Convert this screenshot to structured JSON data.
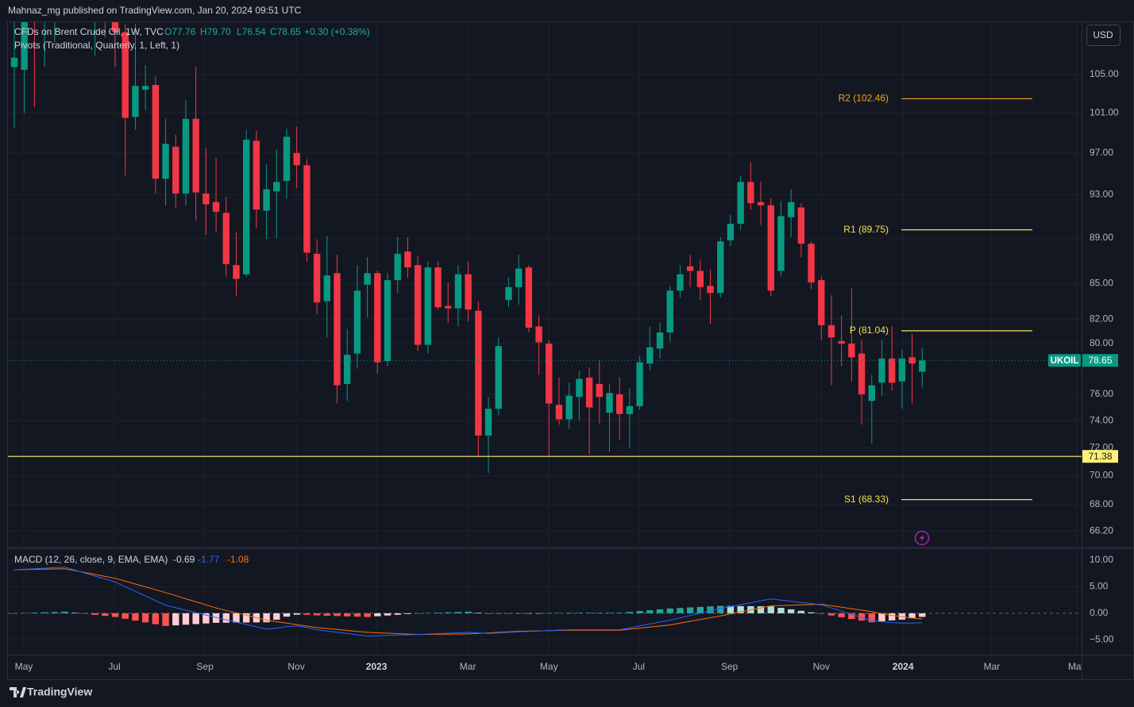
{
  "header": {
    "publisher": "Mahnaz_mg published on TradingView.com, Jan 20, 2024 09:51 UTC"
  },
  "currency": "USD",
  "footer": "TradingView",
  "chart_data": [
    {
      "type": "candlestick",
      "legend": {
        "symbol": "CFDs on Brent Crude Oil, 1W, TVC",
        "open": "O77.76",
        "high": "H79.70",
        "low": "L76.54",
        "close": "C78.65",
        "change": "+0.30 (+0.38%)"
      },
      "indicator": "Pivots (Traditional, Quarterly, 1, Left, 1)",
      "open": [
        105.8,
        105.5,
        112.5,
        111,
        112.6,
        119.5,
        119.6,
        122,
        113.1,
        113,
        113,
        109.6,
        100.6,
        103.4,
        103.9,
        94.5,
        97.6,
        93.1,
        100.4,
        93.1,
        92.3,
        91.3,
        86.6,
        85.8,
        98.2,
        91.5,
        93.3,
        94.3,
        97,
        95.8,
        87.6,
        83.5,
        85.9,
        76.8,
        79.2,
        84.9,
        85.9,
        78.6,
        85.3,
        87.8,
        86.6,
        79.9,
        86.4,
        83.1,
        82.9,
        85.8,
        82.7,
        72.9,
        74.9,
        83.6,
        84.7,
        86.4,
        81.4,
        80,
        75.2,
        74.1,
        75.8,
        77.3,
        76.8,
        74.6,
        76,
        74.5,
        75.1,
        78.4,
        79.6,
        80.9,
        84.4,
        86.5,
        86.1,
        84.8,
        84.2,
        88.8,
        90.3,
        94.2,
        92.3,
        92,
        86.1,
        90.9,
        91.8,
        88.5,
        85.3,
        81.5,
        80.2,
        80,
        79.2,
        75.5,
        76.9,
        78.8,
        77,
        78.9,
        77.76
      ],
      "high": [
        110.8,
        114,
        114,
        113,
        119.7,
        124.4,
        124,
        125,
        115.4,
        117,
        115,
        110.5,
        110.5,
        106,
        104.8,
        100.4,
        98.8,
        102.3,
        105.8,
        97.5,
        96.5,
        92.8,
        89.5,
        99.3,
        99.2,
        95.9,
        97.3,
        99.4,
        99.6,
        96.4,
        88.9,
        89.2,
        87.5,
        81.2,
        86.6,
        87.3,
        86.1,
        85.9,
        89.1,
        89.1,
        87.4,
        86.9,
        86.9,
        85.1,
        86.6,
        86.9,
        83.5,
        75.8,
        80.5,
        85.5,
        87.5,
        86.6,
        82.3,
        80.3,
        77.3,
        76.9,
        77.8,
        78.1,
        78.7,
        76.8,
        77.3,
        76.5,
        79,
        81.4,
        81.7,
        84.8,
        86.6,
        87.5,
        87.1,
        86.2,
        89.1,
        91.1,
        94.8,
        96.1,
        94.2,
        92.7,
        92.4,
        93.5,
        92.2,
        88.7,
        85.6,
        84,
        82.3,
        84.6,
        80.3,
        77.5,
        80.3,
        81.4,
        79.5,
        80.8,
        79.7
      ],
      "low": [
        99.5,
        101,
        101.6,
        105.8,
        108.5,
        115.8,
        118.2,
        111.6,
        107,
        109,
        105.8,
        94.8,
        99.3,
        101.3,
        93.1,
        92,
        91.8,
        92,
        90.6,
        89.3,
        89.5,
        85.6,
        83.9,
        85.6,
        89.9,
        88.9,
        89,
        92.6,
        93.6,
        86.9,
        82.4,
        80.5,
        75.3,
        75.5,
        78,
        82.1,
        77.6,
        78.2,
        84.2,
        85.5,
        79.4,
        79.2,
        82.8,
        81.7,
        81.4,
        81.8,
        71.4,
        70.2,
        74.4,
        83,
        83.2,
        80.9,
        77.5,
        71.4,
        73.7,
        73.4,
        74,
        71.5,
        73.8,
        71.7,
        72.6,
        72,
        74.8,
        77.9,
        78.8,
        80.1,
        83.8,
        84.7,
        83.6,
        81.6,
        83.8,
        88.3,
        89.7,
        91.6,
        90.2,
        83.9,
        85.6,
        89.1,
        87.3,
        84.5,
        80.3,
        76.7,
        78.2,
        77,
        73.7,
        72.3,
        75.9,
        76.3,
        74.9,
        75.3,
        76.54
      ],
      "close": [
        106.8,
        112.4,
        111.5,
        112.6,
        119.4,
        119.7,
        122,
        113.1,
        113.1,
        111.6,
        109.6,
        100.5,
        103.8,
        103.8,
        94.5,
        97.9,
        93.1,
        100.4,
        93.2,
        92.1,
        91.4,
        86.7,
        85.4,
        98.3,
        91.6,
        93.5,
        94.2,
        98.6,
        95.8,
        87.7,
        83.4,
        85.7,
        76.7,
        79.1,
        84.4,
        85.9,
        78.5,
        85.3,
        87.6,
        86.4,
        79.9,
        86.4,
        83,
        82.9,
        85.8,
        82.8,
        72.9,
        74.9,
        79.8,
        84.7,
        86.3,
        81.3,
        80.1,
        75.3,
        74.1,
        75.9,
        77.2,
        75,
        75.8,
        76.1,
        74.5,
        75.1,
        78.5,
        79.7,
        80.9,
        84.4,
        85.8,
        86.1,
        84.7,
        84.2,
        88.7,
        90.3,
        94.2,
        92.2,
        92,
        84.4,
        91,
        92.3,
        88.5,
        85.1,
        81.5,
        80.5,
        80,
        78.9,
        76,
        76.7,
        78.8,
        76.9,
        78.8,
        78.4,
        78.65
      ],
      "up_color": "#089981",
      "down_color": "#f23645",
      "log_scale": true,
      "grid": true,
      "ylim": [
        65.1,
        110.7
      ],
      "yticks": [
        {
          "value": 105,
          "label": "105.00"
        },
        {
          "value": 101,
          "label": "101.00"
        },
        {
          "value": 97,
          "label": "97.00"
        },
        {
          "value": 93,
          "label": "93.00"
        },
        {
          "value": 89,
          "label": "89.00"
        },
        {
          "value": 85,
          "label": "85.00"
        },
        {
          "value": 82,
          "label": "82.00"
        },
        {
          "value": 80,
          "label": "80.00"
        },
        {
          "value": 76,
          "label": "76.00"
        },
        {
          "value": 74,
          "label": "74.00"
        },
        {
          "value": 72,
          "label": "72.00"
        },
        {
          "value": 70,
          "label": "70.00"
        },
        {
          "value": 68,
          "label": "68.00"
        },
        {
          "value": 66.2,
          "label": "66.20"
        }
      ],
      "xlim": [
        -0.63,
        105.8
      ],
      "xticks": [
        {
          "value": 0.94,
          "label": "May"
        },
        {
          "value": 9.92,
          "label": "Jul"
        },
        {
          "value": 18.9,
          "label": "Sep"
        },
        {
          "value": 27.95,
          "label": "Nov"
        },
        {
          "value": 35.9,
          "label": "2023"
        },
        {
          "value": 44.96,
          "label": "Mar"
        },
        {
          "value": 53.0,
          "label": "May"
        },
        {
          "value": 61.9,
          "label": "Jul"
        },
        {
          "value": 70.9,
          "label": "Sep"
        },
        {
          "value": 80.0,
          "label": "Nov"
        },
        {
          "value": 88.1,
          "label": "2024"
        },
        {
          "value": 96.9,
          "label": "Mar"
        },
        {
          "value": 105.35,
          "label": "May"
        }
      ],
      "pivots": [
        {
          "label": "R2 (102.46)",
          "value": 102.46,
          "color": "#f7a21b"
        },
        {
          "label": "R1 (89.75)",
          "value": 89.75,
          "color": "#f5e04c"
        },
        {
          "label": "P (81.04)",
          "value": 81.04,
          "color": "#f5e04c"
        },
        {
          "label": "S1 (68.33)",
          "value": 68.33,
          "color": "#f5e04c"
        }
      ],
      "horizontal_line": {
        "value": 71.38,
        "color": "#fff176"
      },
      "last_price": {
        "symbol": "UKOIL"
      }
    },
    {
      "type": "macd",
      "title": "MACD (12, 26, close, 9, EMA, EMA)",
      "ylim": [
        -7.8,
        12.4
      ],
      "yticks": [
        {
          "value": 10,
          "label": "10.00"
        },
        {
          "value": 5,
          "label": "5.00"
        },
        {
          "value": 0,
          "label": "0.00"
        },
        {
          "value": -5,
          "label": "−5.00"
        }
      ],
      "histogram": {
        "colors": {
          "up_rising": "#26a69a",
          "up_falling": "#b2dfdb",
          "down_falling": "#ff5252",
          "down_rising": "#ffcdd2"
        },
        "values": [
          0,
          0.06,
          0.12,
          0.18,
          0.24,
          0.3,
          0.1,
          -0.1,
          -0.3,
          -0.5,
          -0.7,
          -1.04,
          -1.38,
          -1.72,
          -2.06,
          -2.4,
          -2.28,
          -2.16,
          -2.04,
          -1.92,
          -1.8,
          -1.78,
          -1.76,
          -1.74,
          -1.72,
          -1.7,
          -1.22,
          -0.64,
          -0.26,
          -0.28,
          -0.4,
          -0.46,
          -0.52,
          -0.58,
          -0.64,
          -0.7,
          -0.56,
          -0.42,
          -0.28,
          -0.14,
          0,
          0.06,
          0.12,
          0.18,
          0.24,
          0.3,
          0.1,
          -0.1,
          -0.1,
          -0.1,
          -0.1,
          -0.06,
          -0.02,
          0.02,
          0.06,
          0.1,
          0.1,
          0.1,
          0.1,
          0.1,
          0.1,
          0.26,
          0.42,
          0.58,
          0.74,
          0.9,
          1.0,
          1.1,
          1.2,
          1.3,
          1.4,
          1.38,
          1.36,
          1.34,
          1.32,
          1.3,
          1.02,
          0.74,
          0.46,
          0.18,
          -0.1,
          -0.42,
          -0.74,
          -1.06,
          -1.38,
          -1.7,
          -1.5,
          -1.35,
          -1.2,
          -0.95,
          -0.69
        ]
      },
      "macd": {
        "color": "#2962ff",
        "values": [
          8.2,
          8.3,
          8.4,
          8.5,
          8.6,
          8.7,
          8.14,
          7.58,
          7.02,
          6.46,
          5.9,
          5.02,
          4.14,
          3.26,
          2.38,
          1.5,
          1.04,
          0.58,
          0.12,
          -0.34,
          -0.8,
          -1.24,
          -1.68,
          -2.12,
          -2.56,
          -3.0,
          -2.8,
          -2.5,
          -2.4,
          -2.7,
          -3.1,
          -3.34,
          -3.58,
          -3.82,
          -4.06,
          -4.3,
          -4.24,
          -4.18,
          -4.12,
          -4.06,
          -4.0,
          -3.92,
          -3.84,
          -3.76,
          -3.68,
          -3.6,
          -3.7,
          -3.8,
          -3.7,
          -3.6,
          -3.5,
          -3.42,
          -3.34,
          -3.26,
          -3.18,
          -3.1,
          -3.1,
          -3.1,
          -3.1,
          -3.1,
          -3.1,
          -2.74,
          -2.38,
          -2.02,
          -1.66,
          -1.3,
          -0.86,
          -0.42,
          0.02,
          0.46,
          0.9,
          1.26,
          1.62,
          1.98,
          2.34,
          2.7,
          2.48,
          2.26,
          2.04,
          1.82,
          1.6,
          1.0,
          0.4,
          -0.2,
          -0.8,
          -1.4,
          -1.6,
          -1.75,
          -1.85,
          -1.85,
          -1.77
        ]
      },
      "signal": {
        "color": "#ff6d00",
        "values": [
          8.2,
          8.24,
          8.28,
          8.32,
          8.36,
          8.4,
          8.04,
          7.68,
          7.32,
          6.96,
          6.6,
          6.06,
          5.52,
          4.98,
          4.44,
          3.9,
          3.32,
          2.74,
          2.16,
          1.58,
          1.0,
          0.54,
          0.08,
          -0.38,
          -0.84,
          -1.3,
          -1.58,
          -1.86,
          -2.14,
          -2.42,
          -2.7,
          -2.88,
          -3.06,
          -3.24,
          -3.42,
          -3.6,
          -3.68,
          -3.76,
          -3.84,
          -3.92,
          -4.0,
          -3.98,
          -3.96,
          -3.94,
          -3.92,
          -3.9,
          -3.8,
          -3.7,
          -3.6,
          -3.5,
          -3.4,
          -3.36,
          -3.32,
          -3.28,
          -3.24,
          -3.2,
          -3.2,
          -3.2,
          -3.2,
          -3.2,
          -3.2,
          -3.0,
          -2.8,
          -2.6,
          -2.4,
          -2.2,
          -1.86,
          -1.52,
          -1.18,
          -0.84,
          -0.5,
          -0.12,
          0.26,
          0.64,
          1.02,
          1.4,
          1.46,
          1.52,
          1.58,
          1.64,
          1.7,
          1.42,
          1.14,
          0.86,
          0.58,
          0.3,
          -0.1,
          -0.4,
          -0.65,
          -0.9,
          -1.08
        ]
      }
    }
  ]
}
